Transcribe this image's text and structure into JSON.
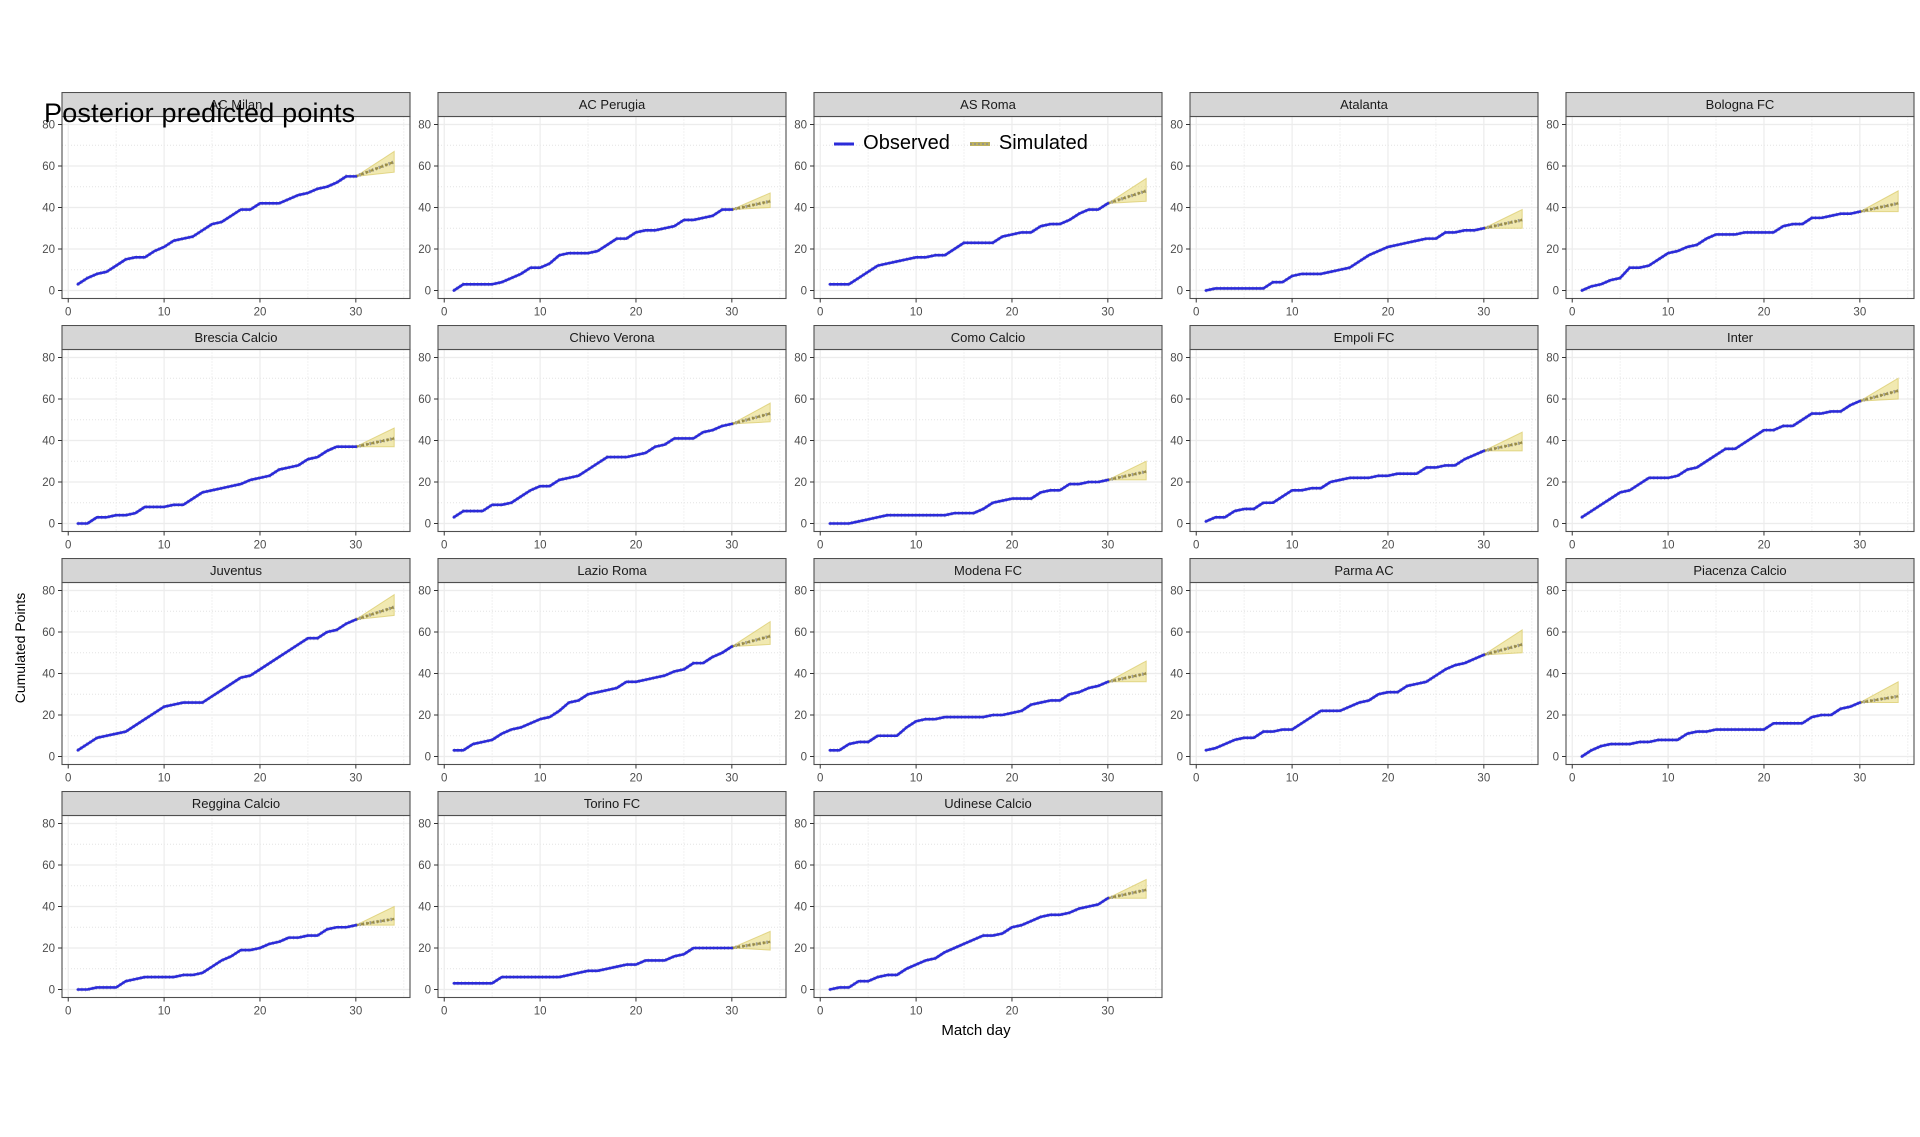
{
  "title": "Posterior predicted points",
  "legend": {
    "observed": "Observed",
    "simulated": "Simulated"
  },
  "axes": {
    "x_title": "Match day",
    "y_title": "Cumulated Points",
    "x_ticks": [
      0,
      10,
      20,
      30
    ],
    "x_minor_ticks": [
      5,
      15,
      25,
      35
    ],
    "y_ticks": [
      0,
      20,
      40,
      60,
      80
    ],
    "y_minor_ticks": [
      10,
      30,
      50,
      70
    ],
    "x_domain": [
      1,
      34
    ],
    "y_domain": [
      0,
      88
    ]
  },
  "colors": {
    "observed_line": "#2b2bd9",
    "observed_underlay": "#8a8a8a",
    "band_fill": "#e8da7d",
    "band_edge": "#d9c964",
    "band_mid_olive": "#97893c",
    "band_mid_gray": "#8f8f8f",
    "strip_bg": "#d6d6d6",
    "strip_border": "#4f4f4f",
    "panel_border": "#4f4f4f",
    "panel_bg": "#ffffff",
    "grid_major": "#ececec",
    "grid_minor": "#e4e4e4",
    "tick_mark": "#333333",
    "tick_label": "#4d4d4d",
    "strip_text": "#1a1a1a"
  },
  "chart_data": {
    "type": "line",
    "title": "Posterior predicted points",
    "xlabel": "Match day",
    "ylabel": "Cumulated Points",
    "observed_days_start": 1,
    "observed_days_end": 30,
    "simulated_day_start": 30,
    "simulated_day_end": 34,
    "legend_position": "top-center",
    "facets": [
      {
        "name": "AC Milan",
        "observed": [
          3,
          6,
          8,
          9,
          12,
          15,
          16,
          16,
          19,
          21,
          24,
          25,
          26,
          29,
          32,
          33,
          36,
          39,
          39,
          42,
          42,
          42,
          44,
          46,
          47,
          49,
          50,
          52,
          55,
          55
        ],
        "band": {
          "end_lower": 57,
          "end_mid": 62,
          "end_upper": 67
        }
      },
      {
        "name": "AC Perugia",
        "observed": [
          0,
          3,
          3,
          3,
          3,
          4,
          6,
          8,
          11,
          11,
          13,
          17,
          18,
          18,
          18,
          19,
          22,
          25,
          25,
          28,
          29,
          29,
          30,
          31,
          34,
          34,
          35,
          36,
          39,
          39
        ],
        "band": {
          "end_lower": 40,
          "end_mid": 43,
          "end_upper": 47
        }
      },
      {
        "name": "AS Roma",
        "observed": [
          3,
          3,
          3,
          6,
          9,
          12,
          13,
          14,
          15,
          16,
          16,
          17,
          17,
          20,
          23,
          23,
          23,
          23,
          26,
          27,
          28,
          28,
          31,
          32,
          32,
          34,
          37,
          39,
          39,
          42
        ],
        "band": {
          "end_lower": 43,
          "end_mid": 48,
          "end_upper": 54
        }
      },
      {
        "name": "Atalanta",
        "observed": [
          0,
          1,
          1,
          1,
          1,
          1,
          1,
          4,
          4,
          7,
          8,
          8,
          8,
          9,
          10,
          11,
          14,
          17,
          19,
          21,
          22,
          23,
          24,
          25,
          25,
          28,
          28,
          29,
          29,
          30
        ],
        "band": {
          "end_lower": 30,
          "end_mid": 34,
          "end_upper": 39
        }
      },
      {
        "name": "Bologna FC",
        "observed": [
          0,
          2,
          3,
          5,
          6,
          11,
          11,
          12,
          15,
          18,
          19,
          21,
          22,
          25,
          27,
          27,
          27,
          28,
          28,
          28,
          28,
          31,
          32,
          32,
          35,
          35,
          36,
          37,
          37,
          38
        ],
        "band": {
          "end_lower": 38,
          "end_mid": 42,
          "end_upper": 48
        }
      },
      {
        "name": "Brescia Calcio",
        "observed": [
          0,
          0,
          3,
          3,
          4,
          4,
          5,
          8,
          8,
          8,
          9,
          9,
          12,
          15,
          16,
          17,
          18,
          19,
          21,
          22,
          23,
          26,
          27,
          28,
          31,
          32,
          35,
          37,
          37,
          37
        ],
        "band": {
          "end_lower": 37,
          "end_mid": 41,
          "end_upper": 46
        }
      },
      {
        "name": "Chievo Verona",
        "observed": [
          3,
          6,
          6,
          6,
          9,
          9,
          10,
          13,
          16,
          18,
          18,
          21,
          22,
          23,
          26,
          29,
          32,
          32,
          32,
          33,
          34,
          37,
          38,
          41,
          41,
          41,
          44,
          45,
          47,
          48
        ],
        "band": {
          "end_lower": 49,
          "end_mid": 53,
          "end_upper": 58
        }
      },
      {
        "name": "Como Calcio",
        "observed": [
          0,
          0,
          0,
          1,
          2,
          3,
          4,
          4,
          4,
          4,
          4,
          4,
          4,
          5,
          5,
          5,
          7,
          10,
          11,
          12,
          12,
          12,
          15,
          16,
          16,
          19,
          19,
          20,
          20,
          21
        ],
        "band": {
          "end_lower": 21,
          "end_mid": 25,
          "end_upper": 30
        }
      },
      {
        "name": "Empoli FC",
        "observed": [
          1,
          3,
          3,
          6,
          7,
          7,
          10,
          10,
          13,
          16,
          16,
          17,
          17,
          20,
          21,
          22,
          22,
          22,
          23,
          23,
          24,
          24,
          24,
          27,
          27,
          28,
          28,
          31,
          33,
          35
        ],
        "band": {
          "end_lower": 35,
          "end_mid": 39,
          "end_upper": 44
        }
      },
      {
        "name": "Inter",
        "observed": [
          3,
          6,
          9,
          12,
          15,
          16,
          19,
          22,
          22,
          22,
          23,
          26,
          27,
          30,
          33,
          36,
          36,
          39,
          42,
          45,
          45,
          47,
          47,
          50,
          53,
          53,
          54,
          54,
          57,
          59
        ],
        "band": {
          "end_lower": 60,
          "end_mid": 64,
          "end_upper": 70
        }
      },
      {
        "name": "Juventus",
        "observed": [
          3,
          6,
          9,
          10,
          11,
          12,
          15,
          18,
          21,
          24,
          25,
          26,
          26,
          26,
          29,
          32,
          35,
          38,
          39,
          42,
          45,
          48,
          51,
          54,
          57,
          57,
          60,
          61,
          64,
          66
        ],
        "band": {
          "end_lower": 68,
          "end_mid": 72,
          "end_upper": 78
        }
      },
      {
        "name": "Lazio Roma",
        "observed": [
          3,
          3,
          6,
          7,
          8,
          11,
          13,
          14,
          16,
          18,
          19,
          22,
          26,
          27,
          30,
          31,
          32,
          33,
          36,
          36,
          37,
          38,
          39,
          41,
          42,
          45,
          45,
          48,
          50,
          53
        ],
        "band": {
          "end_lower": 54,
          "end_mid": 58,
          "end_upper": 65
        }
      },
      {
        "name": "Modena FC",
        "observed": [
          3,
          3,
          6,
          7,
          7,
          10,
          10,
          10,
          14,
          17,
          18,
          18,
          19,
          19,
          19,
          19,
          19,
          20,
          20,
          21,
          22,
          25,
          26,
          27,
          27,
          30,
          31,
          33,
          34,
          36
        ],
        "band": {
          "end_lower": 36,
          "end_mid": 40,
          "end_upper": 46
        }
      },
      {
        "name": "Parma AC",
        "observed": [
          3,
          4,
          6,
          8,
          9,
          9,
          12,
          12,
          13,
          13,
          16,
          19,
          22,
          22,
          22,
          24,
          26,
          27,
          30,
          31,
          31,
          34,
          35,
          36,
          39,
          42,
          44,
          45,
          47,
          49
        ],
        "band": {
          "end_lower": 50,
          "end_mid": 54,
          "end_upper": 61
        }
      },
      {
        "name": "Piacenza Calcio",
        "observed": [
          0,
          3,
          5,
          6,
          6,
          6,
          7,
          7,
          8,
          8,
          8,
          11,
          12,
          12,
          13,
          13,
          13,
          13,
          13,
          13,
          16,
          16,
          16,
          16,
          19,
          20,
          20,
          23,
          24,
          26
        ],
        "band": {
          "end_lower": 26,
          "end_mid": 29,
          "end_upper": 36
        }
      },
      {
        "name": "Reggina Calcio",
        "observed": [
          0,
          0,
          1,
          1,
          1,
          4,
          5,
          6,
          6,
          6,
          6,
          7,
          7,
          8,
          11,
          14,
          16,
          19,
          19,
          20,
          22,
          23,
          25,
          25,
          26,
          26,
          29,
          30,
          30,
          31
        ],
        "band": {
          "end_lower": 31,
          "end_mid": 34,
          "end_upper": 40
        }
      },
      {
        "name": "Torino FC",
        "observed": [
          3,
          3,
          3,
          3,
          3,
          6,
          6,
          6,
          6,
          6,
          6,
          6,
          7,
          8,
          9,
          9,
          10,
          11,
          12,
          12,
          14,
          14,
          14,
          16,
          17,
          20,
          20,
          20,
          20,
          20
        ],
        "band": {
          "end_lower": 19,
          "end_mid": 23,
          "end_upper": 28
        }
      },
      {
        "name": "Udinese Calcio",
        "observed": [
          0,
          1,
          1,
          4,
          4,
          6,
          7,
          7,
          10,
          12,
          14,
          15,
          18,
          20,
          22,
          24,
          26,
          26,
          27,
          30,
          31,
          33,
          35,
          36,
          36,
          37,
          39,
          40,
          41,
          44
        ],
        "band": {
          "end_lower": 44,
          "end_mid": 48,
          "end_upper": 53
        }
      }
    ]
  }
}
